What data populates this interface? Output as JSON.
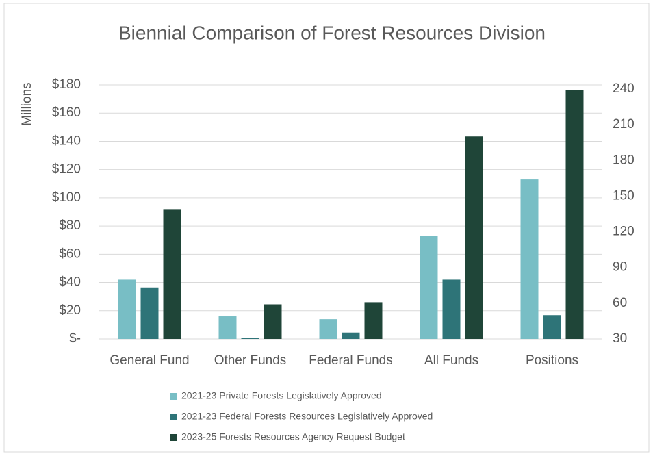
{
  "chart_data": {
    "type": "bar",
    "title": "Biennial Comparison of Forest Resources Division",
    "y_label": "Millions",
    "categories": [
      "General Fund",
      "Other Funds",
      "Federal Funds",
      "All Funds",
      "Positions"
    ],
    "series": [
      {
        "name": "2021-23 Private Forests Legislatively Approved",
        "color": "#78bec5",
        "values": [
          42,
          16,
          14,
          73,
          null
        ],
        "y2_values": [
          null,
          null,
          null,
          null,
          164
        ]
      },
      {
        "name": "2021-23 Federal Forests Resources Legislatively Approved",
        "color": "#2e7478",
        "values": [
          36.5,
          0.5,
          4.5,
          42,
          null
        ],
        "y2_values": [
          null,
          null,
          null,
          null,
          50
        ]
      },
      {
        "name": "2023-25 Forests Resources Agency Request Budget",
        "color": "#1f4538",
        "values": [
          92,
          24.5,
          26,
          143.5,
          null
        ],
        "y2_values": [
          null,
          null,
          null,
          null,
          239
        ]
      }
    ],
    "ylim": [
      0,
      180
    ],
    "yticks": [
      {
        "value": 0,
        "label": "$-"
      },
      {
        "value": 20,
        "label": "$20"
      },
      {
        "value": 40,
        "label": "$40"
      },
      {
        "value": 60,
        "label": "$60"
      },
      {
        "value": 80,
        "label": "$80"
      },
      {
        "value": 100,
        "label": "$100"
      },
      {
        "value": 120,
        "label": "$120"
      },
      {
        "value": 140,
        "label": "$140"
      },
      {
        "value": 160,
        "label": "$160"
      },
      {
        "value": 180,
        "label": "$180"
      }
    ],
    "y2lim": [
      30,
      240
    ],
    "y2ticks": [
      30,
      60,
      90,
      120,
      150,
      180,
      210,
      240
    ],
    "grid": true
  }
}
